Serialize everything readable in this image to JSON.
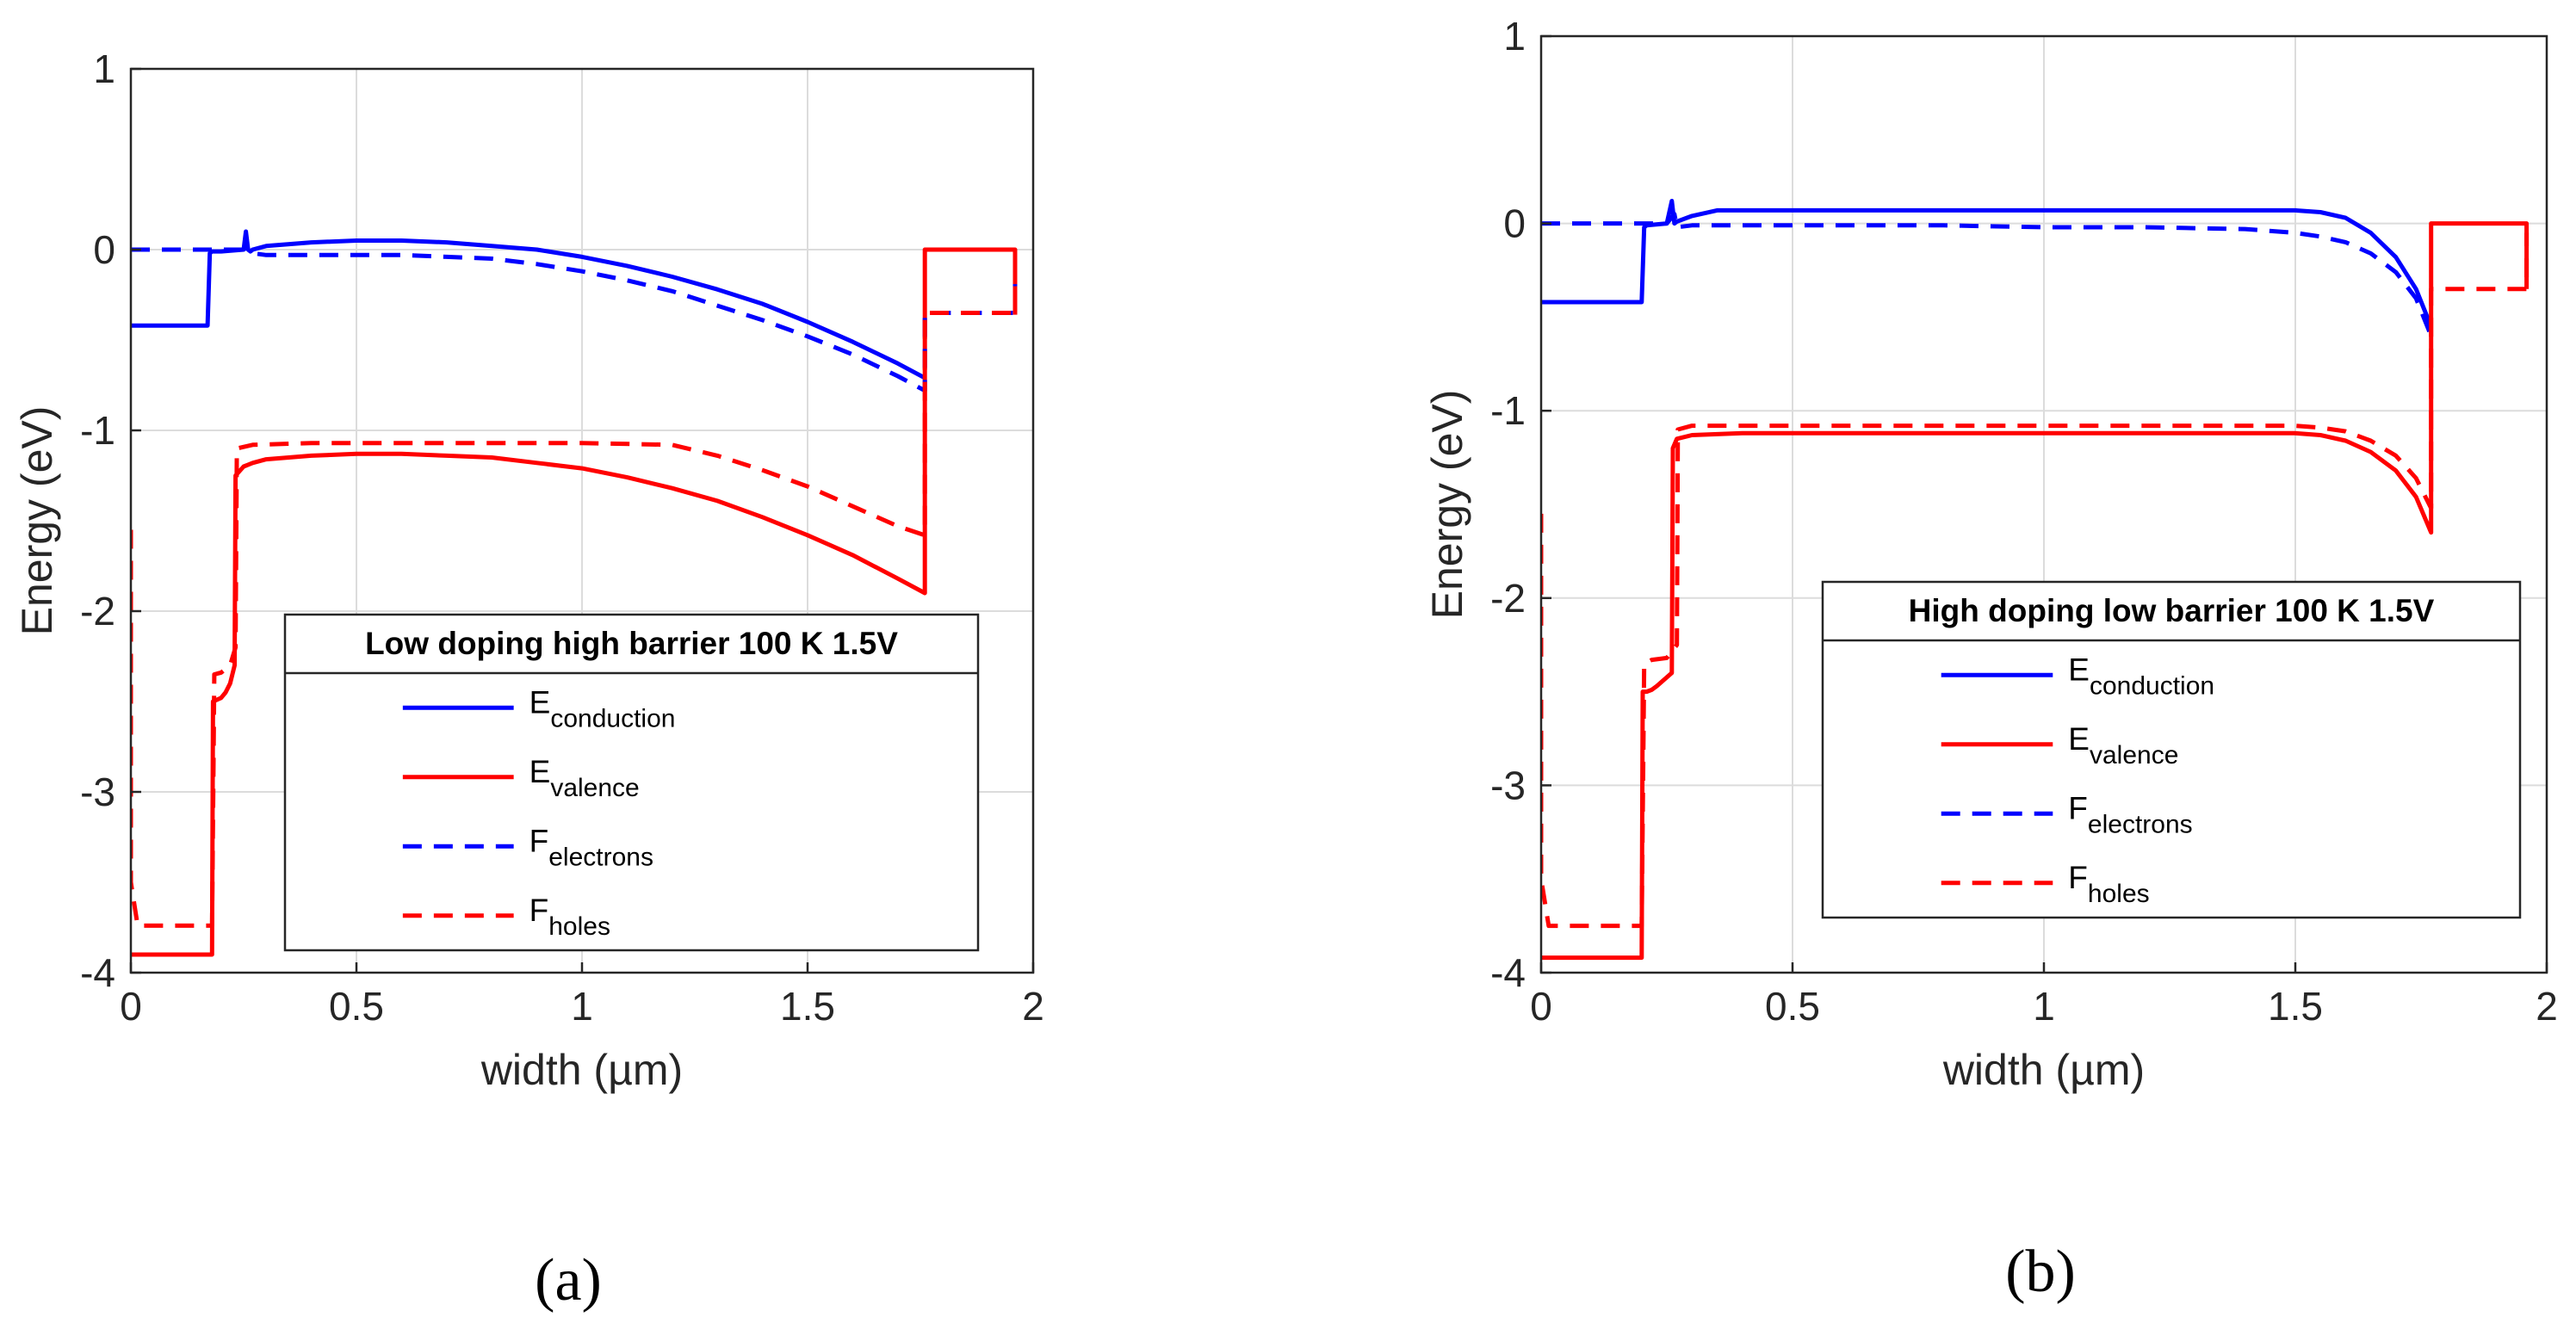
{
  "chart_data": [
    {
      "id": "a",
      "type": "line",
      "panel_label": "(a)",
      "xlabel": "width (µm)",
      "ylabel": "Energy (eV)",
      "xlim": [
        0,
        2
      ],
      "ylim": [
        -4,
        1
      ],
      "xticks": [
        0,
        0.5,
        1,
        1.5,
        2
      ],
      "xtick_labels": [
        "0",
        "0.5",
        "1",
        "1.5",
        "2"
      ],
      "yticks": [
        1,
        0,
        -1,
        -2,
        -3,
        -4
      ],
      "ytick_labels": [
        "1",
        "0",
        "-1",
        "-2",
        "-3",
        "-4"
      ],
      "grid": true,
      "legend": {
        "title": "Low doping high barrier 100 K 1.5V",
        "placement": "bottom-right",
        "entries": [
          {
            "base": "E",
            "sub": "conduction",
            "color": "#0000ff",
            "dash": false
          },
          {
            "base": "E",
            "sub": "valence",
            "color": "#ff0000",
            "dash": false
          },
          {
            "base": "F",
            "sub": "electrons",
            "color": "#0000ff",
            "dash": true
          },
          {
            "base": "F",
            "sub": "holes",
            "color": "#ff0000",
            "dash": true
          }
        ]
      },
      "series": [
        {
          "name": "E_conduction",
          "color": "#0000ff",
          "style": "solid",
          "x": [
            0,
            0.17,
            0.175,
            0.18,
            0.2,
            0.25,
            0.255,
            0.26,
            0.265,
            0.27,
            0.3,
            0.4,
            0.5,
            0.6,
            0.7,
            0.8,
            0.9,
            1.0,
            1.1,
            1.2,
            1.3,
            1.4,
            1.5,
            1.6,
            1.7,
            1.76
          ],
          "y": [
            -0.42,
            -0.42,
            -0.02,
            -0.01,
            -0.01,
            0.0,
            0.1,
            0.0,
            -0.01,
            0.0,
            0.02,
            0.04,
            0.05,
            0.05,
            0.04,
            0.02,
            0.0,
            -0.04,
            -0.09,
            -0.15,
            -0.22,
            -0.3,
            -0.4,
            -0.51,
            -0.63,
            -0.71
          ]
        },
        {
          "name": "E_valence",
          "color": "#ff0000",
          "style": "solid",
          "x": [
            0,
            0.18,
            0.182,
            0.2,
            0.21,
            0.22,
            0.23,
            0.232,
            0.25,
            0.26,
            0.27,
            0.3,
            0.4,
            0.5,
            0.6,
            0.7,
            0.8,
            0.9,
            1.0,
            1.1,
            1.2,
            1.3,
            1.4,
            1.5,
            1.6,
            1.7,
            1.76,
            1.76,
            1.96,
            1.96
          ],
          "y": [
            -3.9,
            -3.9,
            -2.5,
            -2.48,
            -2.45,
            -2.4,
            -2.3,
            -1.25,
            -1.2,
            -1.19,
            -1.18,
            -1.16,
            -1.14,
            -1.13,
            -1.13,
            -1.14,
            -1.15,
            -1.18,
            -1.21,
            -1.26,
            -1.32,
            -1.39,
            -1.48,
            -1.58,
            -1.69,
            -1.82,
            -1.9,
            0.0,
            0.0,
            -0.36
          ]
        },
        {
          "name": "F_electrons",
          "color": "#0000ff",
          "style": "dash",
          "x": [
            0,
            0.2,
            0.25,
            0.255,
            0.26,
            0.27,
            0.3,
            0.4,
            0.5,
            0.6,
            0.7,
            0.8,
            0.9,
            1.0,
            1.1,
            1.2,
            1.3,
            1.4,
            1.5,
            1.6,
            1.7,
            1.76,
            1.76,
            1.96,
            1.96
          ],
          "y": [
            0.0,
            0.0,
            0.0,
            0.08,
            -0.02,
            -0.02,
            -0.03,
            -0.03,
            -0.03,
            -0.03,
            -0.04,
            -0.05,
            -0.08,
            -0.12,
            -0.17,
            -0.23,
            -0.31,
            -0.39,
            -0.48,
            -0.58,
            -0.7,
            -0.78,
            -0.35,
            -0.35,
            -0.05
          ]
        },
        {
          "name": "F_holes",
          "color": "#ff0000",
          "style": "dash",
          "x": [
            0,
            0,
            0.015,
            0.18,
            0.185,
            0.2,
            0.22,
            0.232,
            0.235,
            0.27,
            0.4,
            0.6,
            0.8,
            1.0,
            1.2,
            1.3,
            1.4,
            1.5,
            1.6,
            1.7,
            1.76,
            1.76,
            1.96,
            1.96
          ],
          "y": [
            -1.55,
            -3.5,
            -3.74,
            -3.74,
            -2.35,
            -2.34,
            -2.3,
            -2.2,
            -1.1,
            -1.08,
            -1.07,
            -1.07,
            -1.07,
            -1.07,
            -1.08,
            -1.14,
            -1.22,
            -1.31,
            -1.42,
            -1.53,
            -1.58,
            -0.35,
            -0.35,
            -0.05
          ]
        }
      ]
    },
    {
      "id": "b",
      "type": "line",
      "panel_label": "(b)",
      "xlabel": "width (µm)",
      "ylabel": "Energy (eV)",
      "xlim": [
        0,
        2
      ],
      "ylim": [
        -4,
        1
      ],
      "xticks": [
        0,
        0.5,
        1,
        1.5,
        2
      ],
      "xtick_labels": [
        "0",
        "0.5",
        "1",
        "1.5",
        "2"
      ],
      "yticks": [
        1,
        0,
        -1,
        -2,
        -3,
        -4
      ],
      "ytick_labels": [
        "1",
        "0",
        "-1",
        "-2",
        "-3",
        "-4"
      ],
      "grid": true,
      "legend": {
        "title": "High doping low barrier 100 K 1.5V",
        "placement": "bottom-right",
        "entries": [
          {
            "base": "E",
            "sub": "conduction",
            "color": "#0000ff",
            "dash": false
          },
          {
            "base": "E",
            "sub": "valence",
            "color": "#ff0000",
            "dash": false
          },
          {
            "base": "F",
            "sub": "electrons",
            "color": "#0000ff",
            "dash": true
          },
          {
            "base": "F",
            "sub": "holes",
            "color": "#ff0000",
            "dash": true
          }
        ]
      },
      "series": [
        {
          "name": "E_conduction",
          "color": "#0000ff",
          "style": "solid",
          "x": [
            0,
            0.2,
            0.205,
            0.21,
            0.25,
            0.26,
            0.265,
            0.27,
            0.3,
            0.35,
            0.4,
            0.6,
            0.8,
            1.0,
            1.2,
            1.4,
            1.5,
            1.55,
            1.6,
            1.65,
            1.7,
            1.74,
            1.77
          ],
          "y": [
            -0.42,
            -0.42,
            -0.02,
            -0.01,
            0.0,
            0.12,
            0.0,
            0.01,
            0.04,
            0.07,
            0.07,
            0.07,
            0.07,
            0.07,
            0.07,
            0.07,
            0.07,
            0.06,
            0.03,
            -0.05,
            -0.18,
            -0.35,
            -0.55
          ]
        },
        {
          "name": "E_valence",
          "color": "#ff0000",
          "style": "solid",
          "x": [
            0,
            0.2,
            0.202,
            0.21,
            0.22,
            0.23,
            0.26,
            0.262,
            0.27,
            0.3,
            0.4,
            0.6,
            0.8,
            1.0,
            1.2,
            1.4,
            1.5,
            1.55,
            1.6,
            1.65,
            1.7,
            1.74,
            1.77,
            1.77,
            1.96,
            1.96
          ],
          "y": [
            -3.92,
            -3.92,
            -2.5,
            -2.5,
            -2.49,
            -2.47,
            -2.4,
            -1.2,
            -1.15,
            -1.13,
            -1.12,
            -1.12,
            -1.12,
            -1.12,
            -1.12,
            -1.12,
            -1.12,
            -1.13,
            -1.16,
            -1.22,
            -1.32,
            -1.46,
            -1.65,
            0.0,
            0.0,
            -0.35
          ]
        },
        {
          "name": "F_electrons",
          "color": "#0000ff",
          "style": "dash",
          "x": [
            0,
            0.2,
            0.25,
            0.265,
            0.27,
            0.3,
            0.4,
            0.6,
            0.8,
            1.0,
            1.2,
            1.4,
            1.5,
            1.55,
            1.6,
            1.65,
            1.7,
            1.74,
            1.77
          ],
          "y": [
            0.0,
            0.0,
            0.0,
            0.05,
            -0.02,
            -0.01,
            -0.01,
            -0.01,
            -0.01,
            -0.02,
            -0.02,
            -0.03,
            -0.05,
            -0.07,
            -0.1,
            -0.16,
            -0.26,
            -0.4,
            -0.6
          ]
        },
        {
          "name": "F_holes",
          "color": "#ff0000",
          "style": "dash",
          "x": [
            0,
            0,
            0.015,
            0.2,
            0.205,
            0.22,
            0.25,
            0.27,
            0.272,
            0.3,
            0.4,
            0.6,
            0.8,
            1.0,
            1.2,
            1.4,
            1.5,
            1.55,
            1.6,
            1.65,
            1.7,
            1.74,
            1.77,
            1.77,
            1.96,
            1.96
          ],
          "y": [
            -1.55,
            -3.5,
            -3.75,
            -3.75,
            -2.35,
            -2.33,
            -2.32,
            -2.25,
            -1.1,
            -1.08,
            -1.08,
            -1.08,
            -1.08,
            -1.08,
            -1.08,
            -1.08,
            -1.08,
            -1.09,
            -1.11,
            -1.16,
            -1.24,
            -1.36,
            -1.52,
            -0.35,
            -0.35,
            -0.05
          ]
        }
      ]
    }
  ]
}
